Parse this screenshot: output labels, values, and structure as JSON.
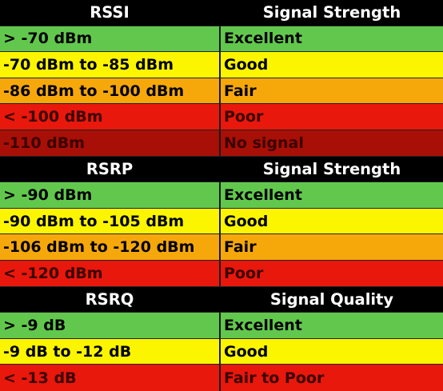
{
  "colors": {
    "header_bg": "#000000",
    "header_text": "#ffffff",
    "excellent": "#62c84d",
    "good": "#fbf500",
    "fair": "#f6a80b",
    "poor": "#e8180c",
    "no_signal": "#a80f06",
    "dark_text": "#000000",
    "poor_text": "#3a0000"
  },
  "tables": [
    {
      "header": {
        "metric": "RSSI",
        "label": "Signal Strength"
      },
      "rows": [
        {
          "range": "> -70 dBm",
          "rating": "Excellent"
        },
        {
          "range": "-70 dBm to -85 dBm",
          "rating": "Good"
        },
        {
          "range": "-86 dBm to -100 dBm",
          "rating": "Fair"
        },
        {
          "range": "< -100 dBm",
          "rating": "Poor"
        },
        {
          "range": "-110 dBm",
          "rating": "No signal"
        }
      ]
    },
    {
      "header": {
        "metric": "RSRP",
        "label": "Signal Strength"
      },
      "rows": [
        {
          "range": "> -90 dBm",
          "rating": "Excellent"
        },
        {
          "range": "-90 dBm to -105 dBm",
          "rating": "Good"
        },
        {
          "range": "-106 dBm to -120 dBm",
          "rating": "Fair"
        },
        {
          "range": "< -120 dBm",
          "rating": "Poor"
        }
      ]
    },
    {
      "header": {
        "metric": "RSRQ",
        "label": "Signal Quality"
      },
      "rows": [
        {
          "range": "> -9 dB",
          "rating": "Excellent"
        },
        {
          "range": "-9 dB to -12 dB",
          "rating": "Good"
        },
        {
          "range": "< -13 dB",
          "rating": "Fair to Poor"
        }
      ]
    }
  ]
}
